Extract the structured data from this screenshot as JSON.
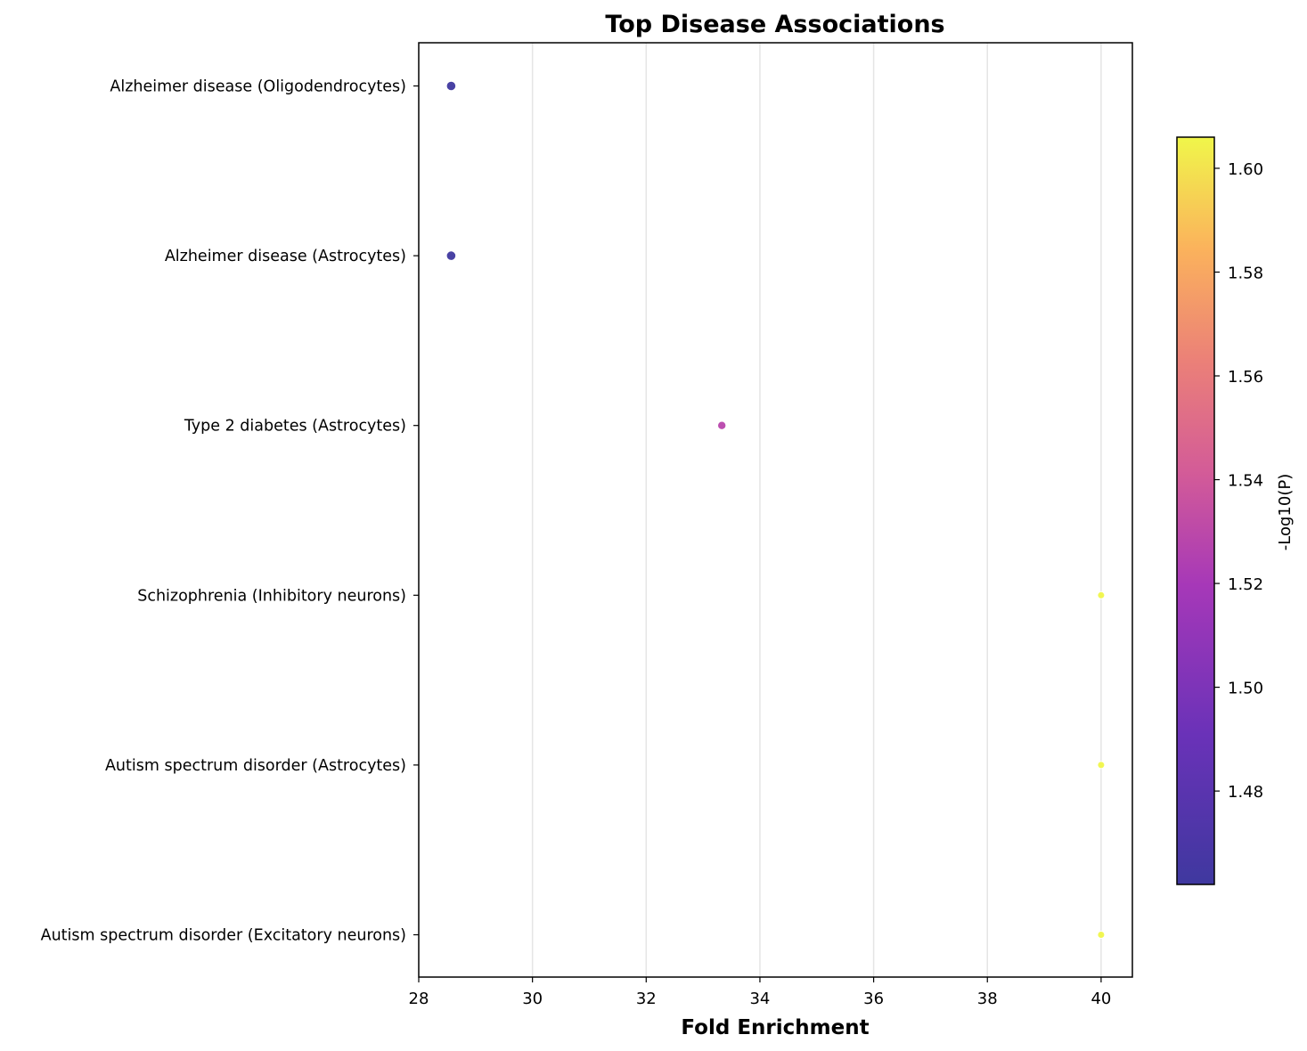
{
  "chart_data": {
    "type": "scatter",
    "title": "Top Disease Associations",
    "xlabel": "Fold Enrichment",
    "ylabel": "",
    "xlim": [
      28,
      40.55
    ],
    "x_ticks": [
      "28",
      "30",
      "32",
      "34",
      "36",
      "38",
      "40"
    ],
    "grid": "vertical",
    "categories": [
      "Alzheimer disease (Oligodendrocytes)",
      "Alzheimer disease (Astrocytes)",
      "Type 2 diabetes (Astrocytes)",
      "Schizophrenia (Inhibitory neurons)",
      "Autism spectrum disorder (Astrocytes)",
      "Autism spectrum disorder (Excitatory neurons)"
    ],
    "points": [
      {
        "category": "Alzheimer disease (Oligodendrocytes)",
        "fold_enrichment": 28.57,
        "neg_log10_p": 1.462
      },
      {
        "category": "Alzheimer disease (Astrocytes)",
        "fold_enrichment": 28.57,
        "neg_log10_p": 1.462
      },
      {
        "category": "Type 2 diabetes (Astrocytes)",
        "fold_enrichment": 33.33,
        "neg_log10_p": 1.528
      },
      {
        "category": "Schizophrenia (Inhibitory neurons)",
        "fold_enrichment": 40.0,
        "neg_log10_p": 1.606
      },
      {
        "category": "Autism spectrum disorder (Astrocytes)",
        "fold_enrichment": 40.0,
        "neg_log10_p": 1.606
      },
      {
        "category": "Autism spectrum disorder (Excitatory neurons)",
        "fold_enrichment": 40.0,
        "neg_log10_p": 1.606
      }
    ],
    "colorbar": {
      "label": "-Log10(P)",
      "colormap": "plasma",
      "range": [
        1.462,
        1.606
      ],
      "ticks": [
        "1.48",
        "1.50",
        "1.52",
        "1.54",
        "1.56",
        "1.58",
        "1.60"
      ]
    }
  }
}
